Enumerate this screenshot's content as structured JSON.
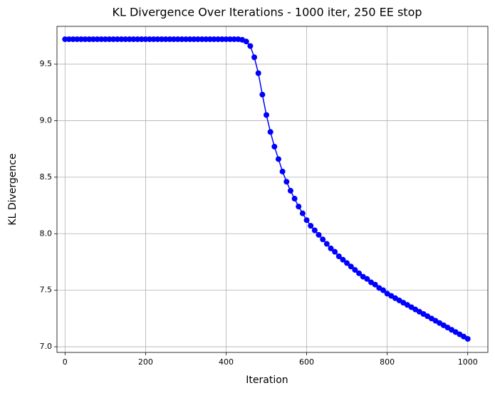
{
  "chart_data": {
    "type": "line",
    "title": "KL Divergence Over Iterations - 1000 iter, 250 EE stop",
    "x_label": "Iteration",
    "y_label": "KL Divergence",
    "x": [
      0,
      10,
      20,
      30,
      40,
      50,
      60,
      70,
      80,
      90,
      100,
      110,
      120,
      130,
      140,
      150,
      160,
      170,
      180,
      190,
      200,
      210,
      220,
      230,
      240,
      250,
      260,
      270,
      280,
      290,
      300,
      310,
      320,
      330,
      340,
      350,
      360,
      370,
      380,
      390,
      400,
      410,
      420,
      430,
      440,
      450,
      460,
      470,
      480,
      490,
      500,
      510,
      520,
      530,
      540,
      550,
      560,
      570,
      580,
      590,
      600,
      610,
      620,
      630,
      640,
      650,
      660,
      670,
      680,
      690,
      700,
      710,
      720,
      730,
      740,
      750,
      760,
      770,
      780,
      790,
      800,
      810,
      820,
      830,
      840,
      850,
      860,
      870,
      880,
      890,
      900,
      910,
      920,
      930,
      940,
      950,
      960,
      970,
      980,
      990,
      1000
    ],
    "series": [
      {
        "name": "KL Divergence",
        "color": "#0000ff",
        "values": [
          9.72,
          9.72,
          9.72,
          9.72,
          9.72,
          9.72,
          9.72,
          9.72,
          9.72,
          9.72,
          9.72,
          9.72,
          9.72,
          9.72,
          9.72,
          9.72,
          9.72,
          9.72,
          9.72,
          9.72,
          9.72,
          9.72,
          9.72,
          9.72,
          9.72,
          9.72,
          9.72,
          9.72,
          9.72,
          9.72,
          9.72,
          9.72,
          9.72,
          9.72,
          9.72,
          9.72,
          9.72,
          9.72,
          9.72,
          9.72,
          9.72,
          9.72,
          9.72,
          9.72,
          9.715,
          9.7,
          9.66,
          9.56,
          9.42,
          9.23,
          9.05,
          8.9,
          8.77,
          8.66,
          8.55,
          8.46,
          8.38,
          8.31,
          8.24,
          8.18,
          8.12,
          8.07,
          8.03,
          7.99,
          7.95,
          7.91,
          7.87,
          7.84,
          7.8,
          7.77,
          7.74,
          7.71,
          7.68,
          7.65,
          7.62,
          7.6,
          7.57,
          7.55,
          7.52,
          7.5,
          7.47,
          7.45,
          7.43,
          7.41,
          7.39,
          7.37,
          7.35,
          7.33,
          7.31,
          7.29,
          7.27,
          7.25,
          7.23,
          7.21,
          7.19,
          7.17,
          7.15,
          7.13,
          7.11,
          7.09,
          7.07
        ]
      }
    ],
    "xlim": [
      -20,
      1050
    ],
    "ylim": [
      6.95,
      9.834
    ],
    "xticks": [
      0,
      200,
      400,
      600,
      800,
      1000
    ],
    "yticks": [
      {
        "value": 7,
        "label": "7.0"
      },
      7.5,
      {
        "value": 8,
        "label": "8.0"
      },
      8.5,
      {
        "value": 9,
        "label": "9.0"
      },
      9.5
    ],
    "grid": true
  }
}
